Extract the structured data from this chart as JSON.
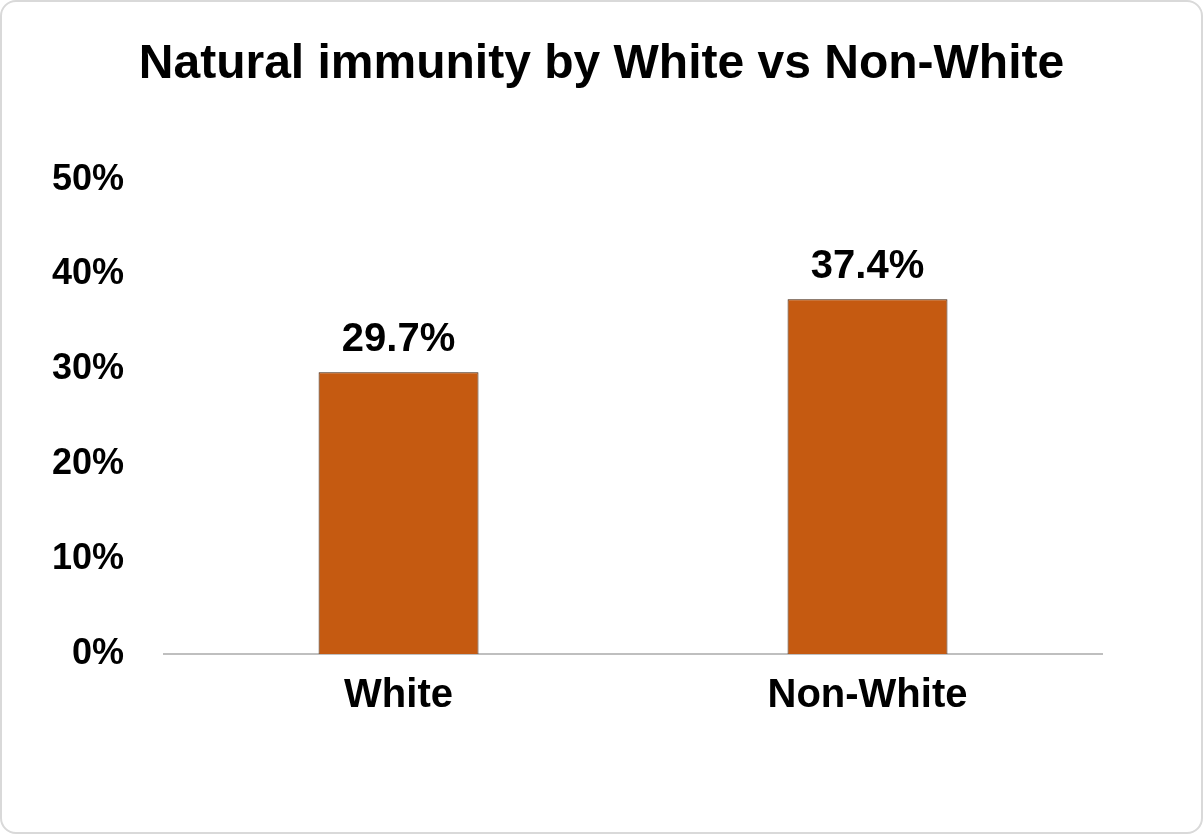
{
  "chart_data": {
    "type": "bar",
    "title": "Natural immunity by White vs Non-White",
    "categories": [
      "White",
      "Non-White"
    ],
    "values": [
      29.7,
      37.4
    ],
    "value_labels": [
      "29.7%",
      "37.4%"
    ],
    "color": "#c55a11",
    "ylim": [
      0,
      50
    ],
    "yticks": [
      {
        "value": 0,
        "label": "0%"
      },
      {
        "value": 10,
        "label": "10%"
      },
      {
        "value": 20,
        "label": "20%"
      },
      {
        "value": 30,
        "label": "30%"
      },
      {
        "value": 40,
        "label": "40%"
      },
      {
        "value": 50,
        "label": "50%"
      }
    ],
    "grid": false,
    "legend": false
  }
}
